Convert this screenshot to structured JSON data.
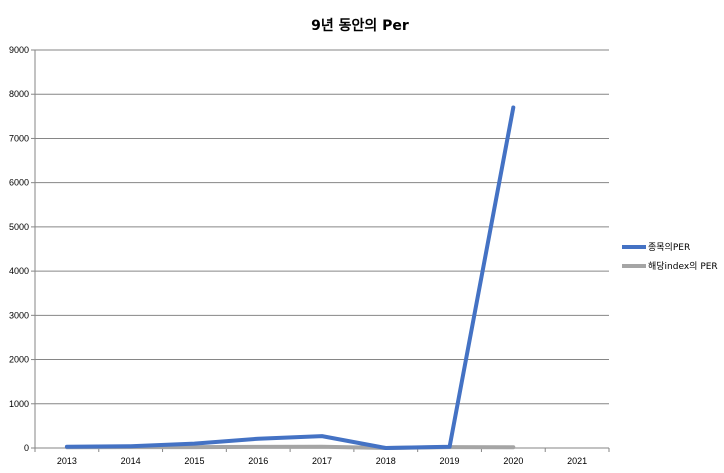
{
  "chart_data": {
    "type": "line",
    "title": "9년 동안의 Per",
    "categories": [
      "2013",
      "2014",
      "2015",
      "2016",
      "2017",
      "2018",
      "2019",
      "2020",
      "2021"
    ],
    "y_ticks": [
      0,
      1000,
      2000,
      3000,
      4000,
      5000,
      6000,
      7000,
      8000,
      9000
    ],
    "ylim": [
      0,
      9000
    ],
    "grid": true,
    "legend_position": "right",
    "series": [
      {
        "name": "종목의PER",
        "color": "#4472c4",
        "values": [
          30,
          40,
          100,
          210,
          270,
          0,
          30,
          7700,
          null
        ]
      },
      {
        "name": "해당index의 PER",
        "color": "#a5a5a5",
        "values": [
          15,
          20,
          20,
          25,
          30,
          0,
          20,
          15,
          null
        ]
      }
    ]
  }
}
